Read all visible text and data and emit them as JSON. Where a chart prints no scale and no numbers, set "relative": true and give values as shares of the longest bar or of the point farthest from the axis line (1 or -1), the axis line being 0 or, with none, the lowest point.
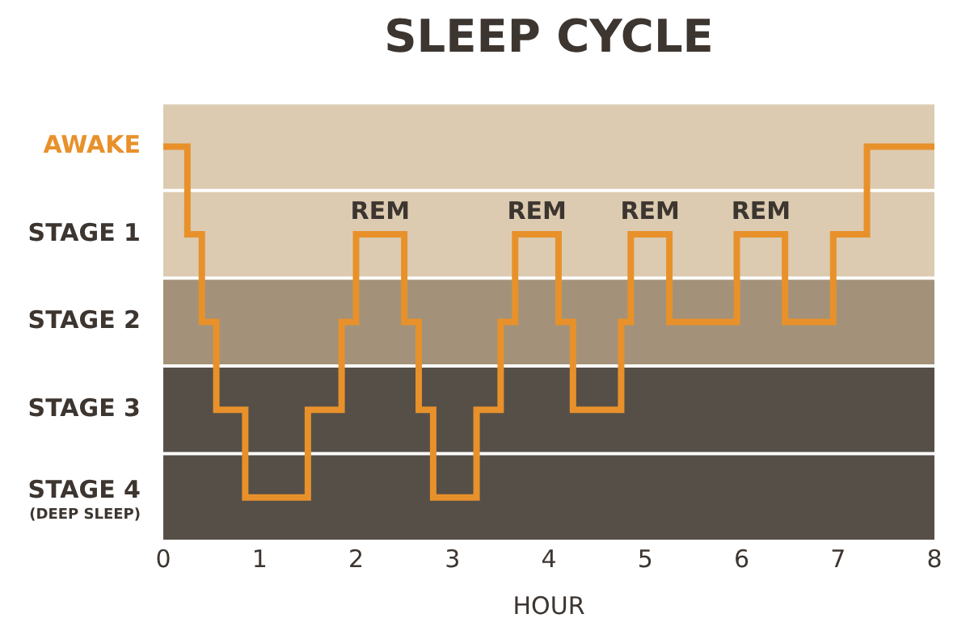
{
  "chart_data": {
    "type": "step",
    "title": "SLEEP CYCLE",
    "xlabel": "HOUR",
    "relative": true,
    "x": [
      0,
      0.25,
      0.4,
      0.55,
      0.85,
      1.5,
      1.85,
      2,
      2.5,
      2.65,
      2.8,
      3.25,
      3.5,
      3.65,
      4.1,
      4.25,
      4.75,
      4.85,
      5.25,
      5.95,
      6.45,
      6.95,
      7.3,
      8
    ],
    "series": [
      {
        "color": "#e8912b",
        "values": [
          1,
          0.75,
          0.5,
          0.25,
          0,
          0.25,
          0.5,
          0.75,
          0.5,
          0.25,
          0,
          0.25,
          0.5,
          0.75,
          0.5,
          0.25,
          0.5,
          0.75,
          0.5,
          0.75,
          0.5,
          0.75,
          1,
          1
        ]
      }
    ],
    "xlim": [
      0,
      8
    ],
    "xticks": [
      0,
      1,
      2,
      3,
      4,
      5,
      6,
      7,
      8
    ],
    "y_categories": [
      "AWAKE",
      "STAGE 1",
      "STAGE 2",
      "STAGE 3",
      "STAGE 4\n(DEEP SLEEP)"
    ],
    "bands": [
      {
        "axis": "y",
        "from": -0.125,
        "to": 0.125,
        "color": "#564f48"
      },
      {
        "axis": "y",
        "from": 0.125,
        "to": 0.375,
        "color": "#564f48"
      },
      {
        "axis": "y",
        "from": 0.375,
        "to": 0.625,
        "color": "#a39279"
      },
      {
        "axis": "y",
        "from": 0.625,
        "to": 0.875,
        "color": "#dccbb0"
      },
      {
        "axis": "y",
        "from": 0.875,
        "to": 1.125,
        "color": "#dccbb0"
      }
    ],
    "annotations": [
      {
        "text": "REM",
        "x": 2.25,
        "y": 0.75
      },
      {
        "text": "REM",
        "x": 3.875,
        "y": 0.75
      },
      {
        "text": "REM",
        "x": 5.05,
        "y": 0.75
      },
      {
        "text": "REM",
        "x": 6.2,
        "y": 0.75
      }
    ],
    "grid": false,
    "legend": false
  }
}
